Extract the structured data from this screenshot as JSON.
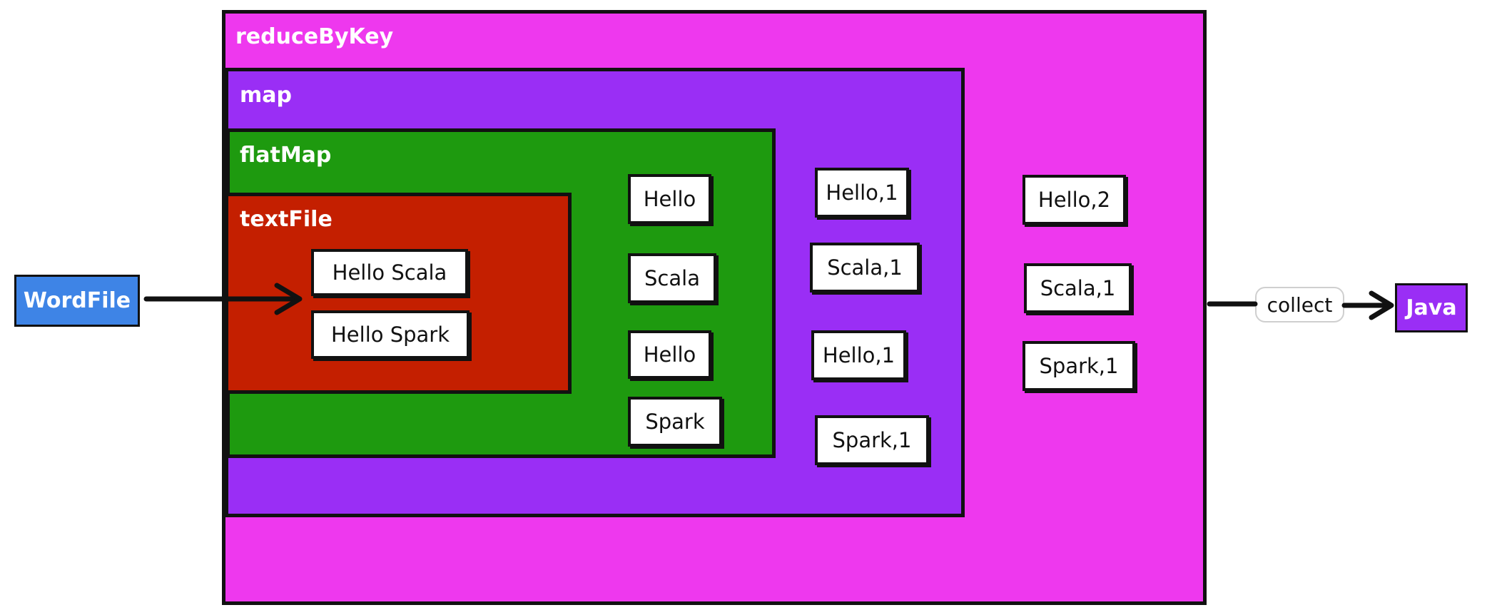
{
  "stages": {
    "reduceByKey": {
      "label": "reduceByKey",
      "color": "#EE38EE"
    },
    "map": {
      "label": "map",
      "color": "#9A2EF5"
    },
    "flatMap": {
      "label": "flatMap",
      "color": "#1E9A0F"
    },
    "textFile": {
      "label": "textFile",
      "color": "#C41F00"
    }
  },
  "source": {
    "label": "WordFile",
    "color": "#3E84E6"
  },
  "sink": {
    "label": "Java",
    "color": "#9A2EF5"
  },
  "collect_label": "collect",
  "textFile_lines": [
    "Hello Scala",
    "Hello Spark"
  ],
  "flatMap_words": [
    "Hello",
    "Scala",
    "Hello",
    "Spark"
  ],
  "map_pairs": [
    "Hello,1",
    "Scala,1",
    "Hello,1",
    "Spark,1"
  ],
  "reduce_results": [
    "Hello,2",
    "Scala,1",
    "Spark,1"
  ]
}
